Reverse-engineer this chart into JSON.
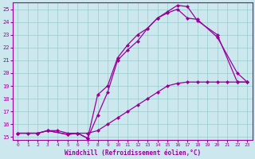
{
  "xlabel": "Windchill (Refroidissement éolien,°C)",
  "bg_color": "#cce8ee",
  "line_color": "#990099",
  "grid_color": "#99cccc",
  "xlim": [
    -0.5,
    23.5
  ],
  "ylim": [
    14.8,
    25.5
  ],
  "yticks": [
    15,
    16,
    17,
    18,
    19,
    20,
    21,
    22,
    23,
    24,
    25
  ],
  "xticks": [
    0,
    1,
    2,
    3,
    4,
    5,
    6,
    7,
    8,
    9,
    10,
    11,
    12,
    13,
    14,
    15,
    16,
    17,
    18,
    19,
    20,
    21,
    22,
    23
  ],
  "line1_x": [
    0,
    1,
    2,
    3,
    4,
    5,
    6,
    7,
    8,
    9,
    10,
    11,
    12,
    13,
    14,
    15,
    16,
    17,
    18,
    19,
    20,
    21,
    22,
    23
  ],
  "line1_y": [
    15.3,
    15.3,
    15.3,
    15.5,
    15.5,
    15.3,
    15.3,
    15.3,
    15.5,
    16.0,
    16.5,
    17.0,
    17.5,
    18.0,
    18.5,
    19.0,
    19.2,
    19.3,
    19.3,
    19.3,
    19.3,
    19.3,
    19.3,
    19.3
  ],
  "line2_x": [
    0,
    2,
    3,
    5,
    6,
    7,
    8,
    9,
    10,
    11,
    12,
    13,
    14,
    15,
    16,
    17,
    18,
    20,
    22,
    23
  ],
  "line2_y": [
    15.3,
    15.3,
    15.5,
    15.2,
    15.3,
    14.9,
    18.3,
    19.0,
    21.2,
    22.2,
    23.0,
    23.5,
    24.3,
    24.7,
    25.0,
    24.3,
    24.2,
    22.8,
    20.0,
    19.3
  ],
  "line3_x": [
    0,
    2,
    3,
    5,
    6,
    7,
    8,
    9,
    10,
    11,
    12,
    13,
    14,
    15,
    16,
    17,
    18,
    20,
    22,
    23
  ],
  "line3_y": [
    15.3,
    15.3,
    15.5,
    15.2,
    15.3,
    14.9,
    16.7,
    18.5,
    21.0,
    21.8,
    22.5,
    23.5,
    24.3,
    24.8,
    25.3,
    25.2,
    24.1,
    23.0,
    19.3,
    19.3
  ]
}
